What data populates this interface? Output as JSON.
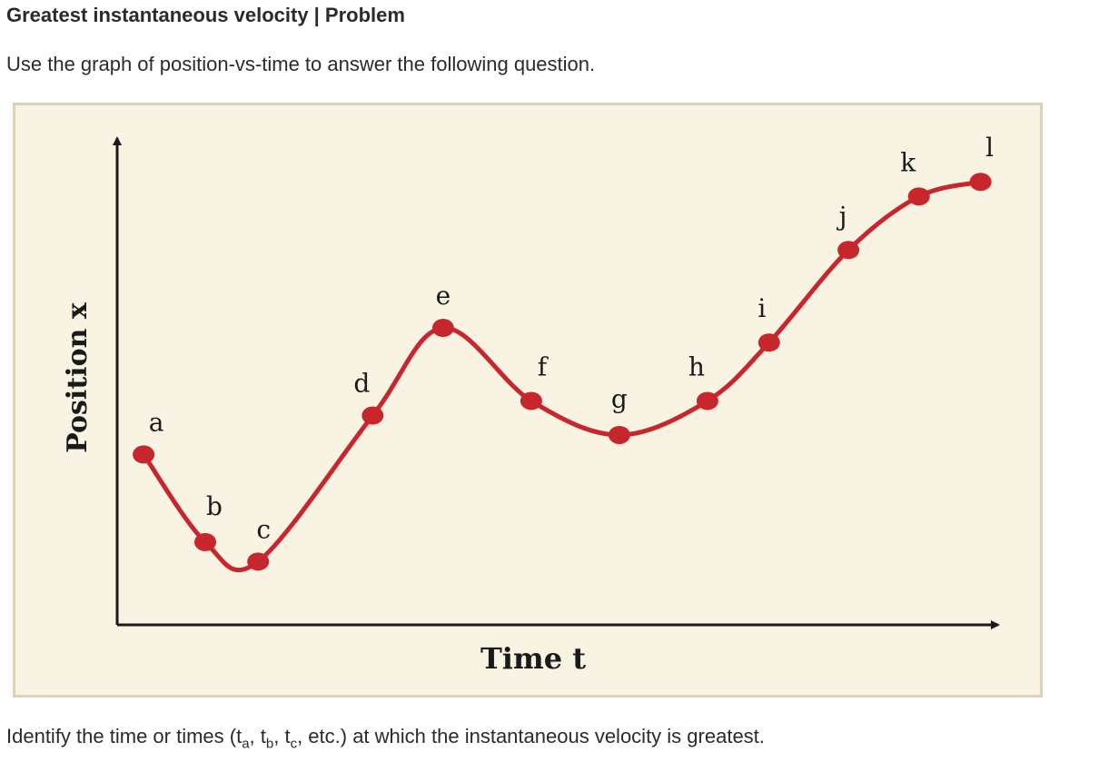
{
  "header": {
    "title": "Greatest instantaneous velocity | Problem"
  },
  "intro": {
    "text": "Use the graph of position-vs-time to answer the following question."
  },
  "question": {
    "prefix": "Identify the time or times (t",
    "sub_a": "a",
    "sep1": ", t",
    "sub_b": "b",
    "sep2": ", t",
    "sub_c": "c",
    "suffix": ", etc.) at which the instantaneous velocity is greatest."
  },
  "chart_data": {
    "type": "line",
    "xlabel": "Time t",
    "ylabel": "Position x",
    "xlim": [
      0,
      1
    ],
    "ylim": [
      0,
      1
    ],
    "ticks": false,
    "grid": false,
    "curve_color": "#c8262d",
    "axis_color": "#1a1a1a",
    "background": "#f8f3e3",
    "points": [
      {
        "label": "a",
        "x": 0.03,
        "y": 0.35
      },
      {
        "label": "b",
        "x": 0.1,
        "y": 0.17
      },
      {
        "label": "c",
        "x": 0.16,
        "y": 0.13
      },
      {
        "label": "d",
        "x": 0.29,
        "y": 0.43
      },
      {
        "label": "e",
        "x": 0.37,
        "y": 0.61
      },
      {
        "label": "f",
        "x": 0.47,
        "y": 0.46
      },
      {
        "label": "g",
        "x": 0.57,
        "y": 0.39
      },
      {
        "label": "h",
        "x": 0.67,
        "y": 0.46
      },
      {
        "label": "i",
        "x": 0.74,
        "y": 0.58
      },
      {
        "label": "j",
        "x": 0.83,
        "y": 0.77
      },
      {
        "label": "k",
        "x": 0.91,
        "y": 0.88
      },
      {
        "label": "l",
        "x": 0.98,
        "y": 0.91
      }
    ]
  }
}
